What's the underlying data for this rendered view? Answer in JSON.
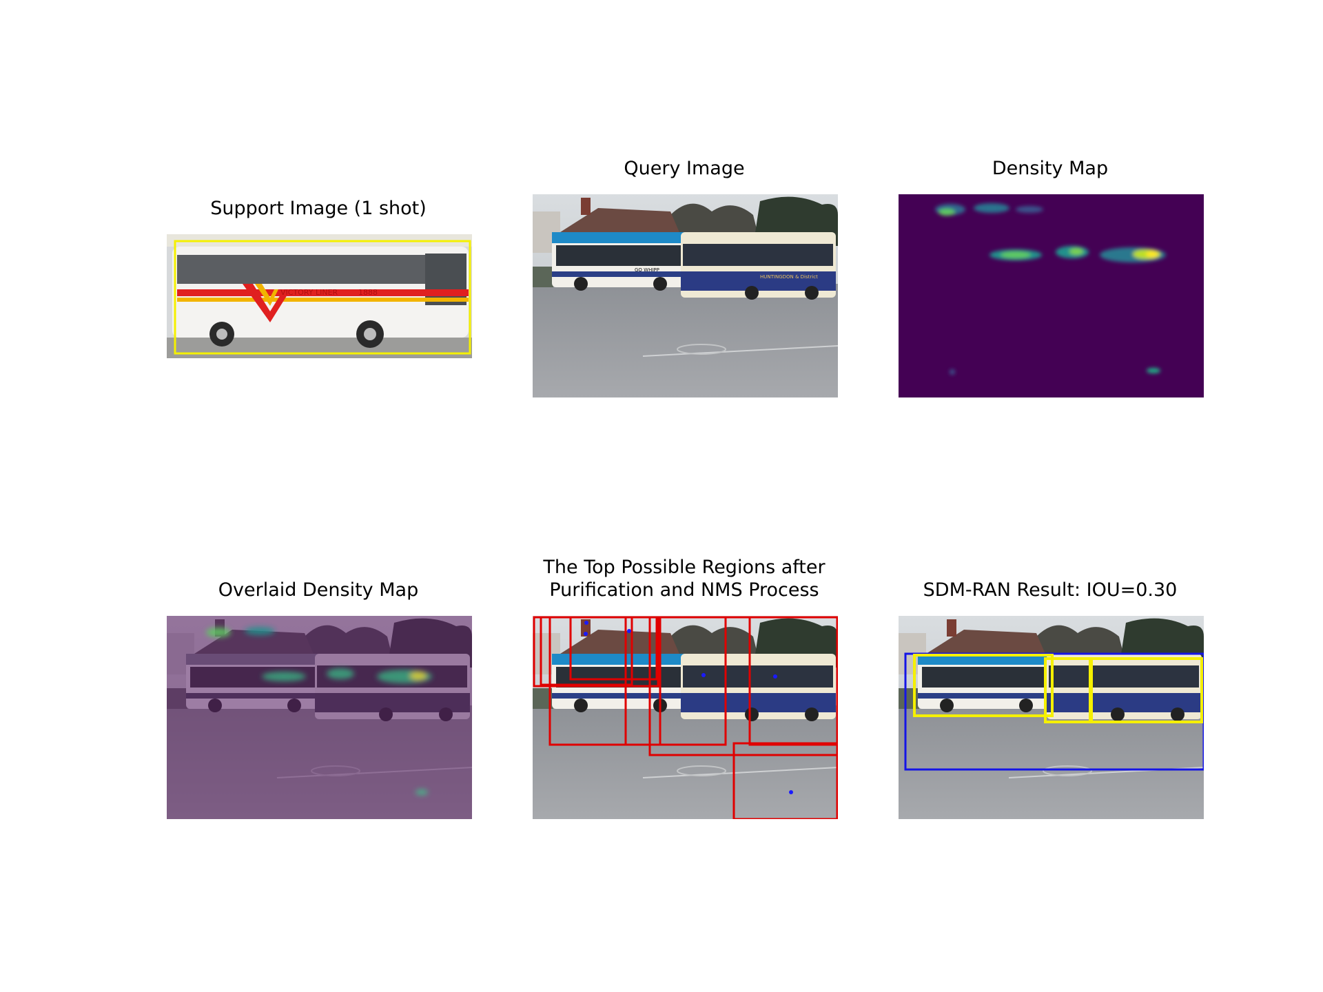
{
  "panels": {
    "support": {
      "title": "Support Image (1 shot)",
      "bus_text": "VICTORY LINER",
      "bus_number": "1888"
    },
    "query": {
      "title": "Query Image",
      "bus_text_left": "GO WHIPP",
      "bus_text_right": "HUNTINGDON & District"
    },
    "density": {
      "title": "Density Map"
    },
    "overlay": {
      "title": "Overlaid Density Map"
    },
    "regions": {
      "title": "The Top Possible Regions after\nPurification and NMS Process"
    },
    "result": {
      "title": "SDM-RAN Result: IOU=0.30"
    }
  },
  "colors": {
    "support_box": "#f5f000",
    "region_box": "#e00000",
    "center_point": "#1a1aff",
    "gt_box": "#f5f000",
    "pred_box": "#1414e6",
    "density_background": "#440154",
    "overlay_tint": "#5a1f66"
  }
}
